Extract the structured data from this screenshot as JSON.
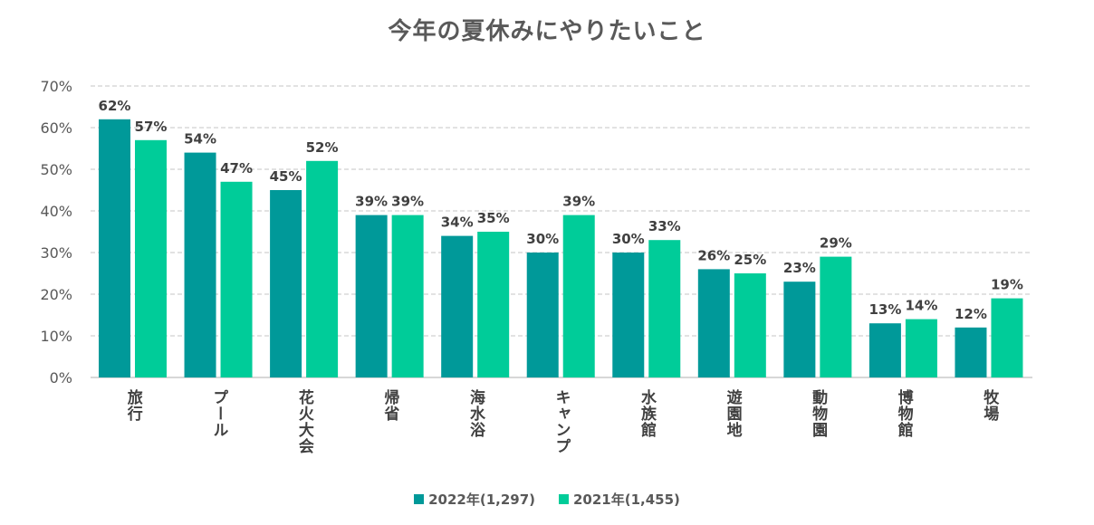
{
  "chart_data": {
    "type": "bar",
    "title": "今年の夏休みにやりたいこと",
    "categories": [
      "旅行",
      "プール",
      "花火大会",
      "帰省",
      "海水浴",
      "キャンプ",
      "水族館",
      "遊園地",
      "動物園",
      "博物館",
      "牧場"
    ],
    "series": [
      {
        "name": "2022年(1,297)",
        "color": "#009999",
        "values": [
          62,
          54,
          45,
          39,
          34,
          30,
          30,
          26,
          23,
          13,
          12
        ]
      },
      {
        "name": "2021年(1,455)",
        "color": "#00CC99",
        "values": [
          57,
          47,
          52,
          39,
          35,
          39,
          33,
          25,
          29,
          14,
          19
        ]
      }
    ],
    "y_ticks": [
      "0%",
      "10%",
      "20%",
      "30%",
      "40%",
      "50%",
      "60%",
      "70%"
    ],
    "ylim": [
      0,
      70
    ],
    "value_unit": "%",
    "grid": "horizontal dashed",
    "legend": "bottom",
    "xlabel": "",
    "ylabel": ""
  }
}
